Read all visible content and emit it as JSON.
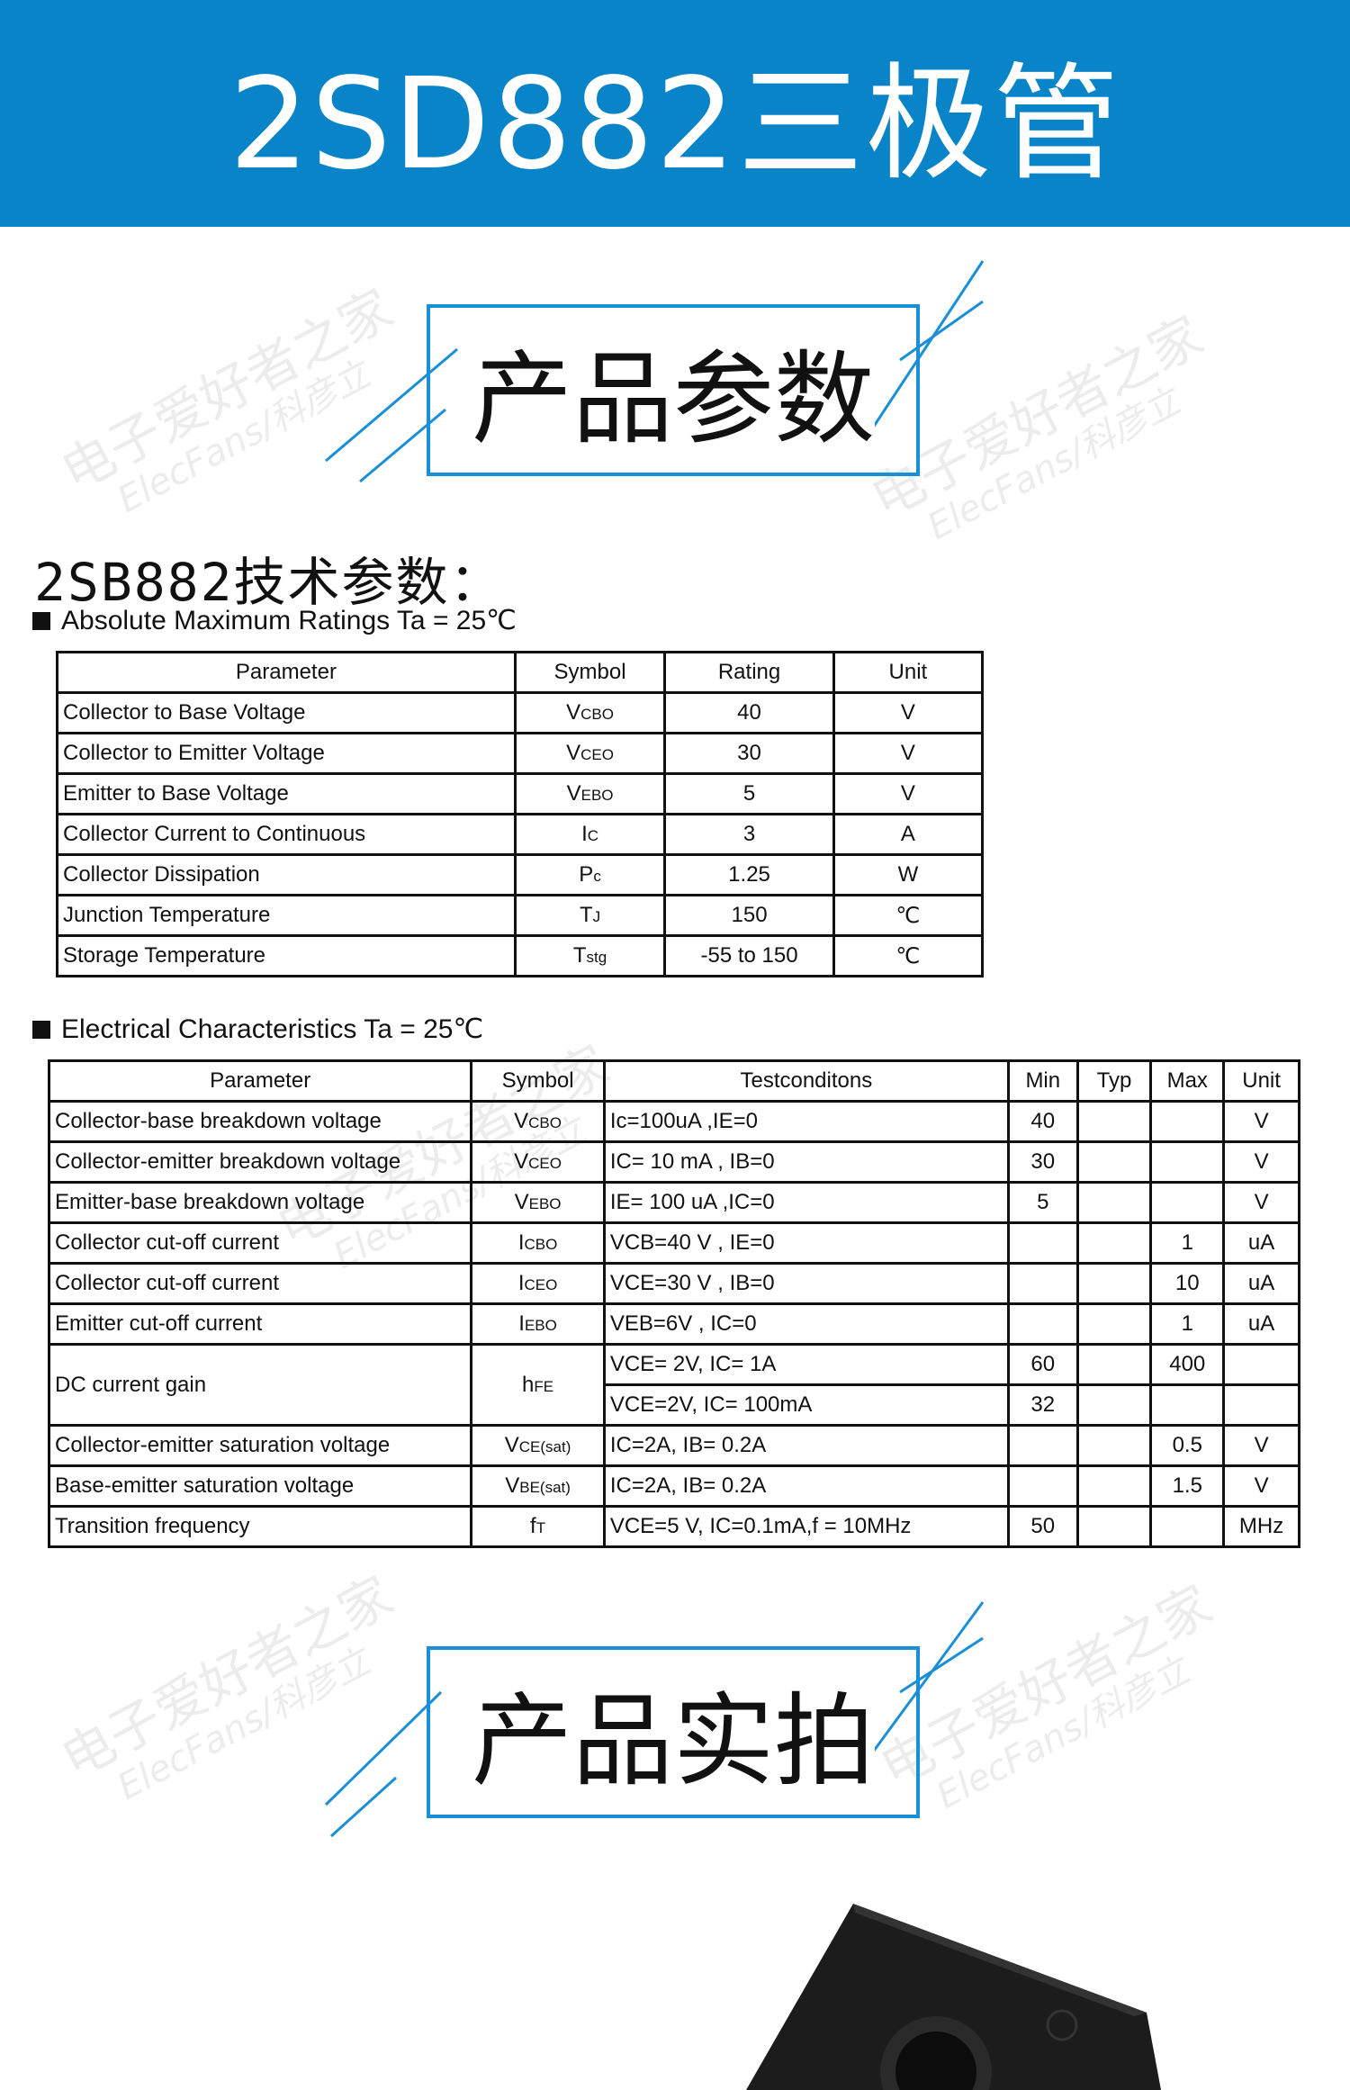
{
  "header": {
    "title": "2SD882三极管",
    "background": "#0a84c8"
  },
  "watermark": {
    "cn": "电子爱好者之家",
    "en": "ElecFans/科彦立"
  },
  "section1": {
    "title": "产品参数"
  },
  "subtitle": "2SB882技术参数：",
  "abs_max": {
    "label": "Absolute Maximum Ratings Ta = 25℃",
    "headers": [
      "Parameter",
      "Symbol",
      "Rating",
      "Unit"
    ],
    "rows": [
      {
        "param": "Collector to Base Voltage",
        "sym": "V",
        "sub": "CBO",
        "rating": "40",
        "unit": "V"
      },
      {
        "param": "Collector to Emitter Voltage",
        "sym": "V",
        "sub": "CEO",
        "rating": "30",
        "unit": "V"
      },
      {
        "param": "Emitter to Base Voltage",
        "sym": "V",
        "sub": "EBO",
        "rating": "5",
        "unit": "V"
      },
      {
        "param": "Collector Current to Continuous",
        "sym": "I",
        "sub": "C",
        "rating": "3",
        "unit": "A"
      },
      {
        "param": "Collector Dissipation",
        "sym": "P",
        "sub": "c",
        "rating": "1.25",
        "unit": "W"
      },
      {
        "param": "Junction Temperature",
        "sym": "T",
        "sub": "J",
        "rating": "150",
        "unit": "℃"
      },
      {
        "param": "Storage Temperature",
        "sym": "T",
        "sub": "stg",
        "rating": "-55 to 150",
        "unit": "℃"
      }
    ]
  },
  "elec": {
    "label": "Electrical Characteristics Ta = 25℃",
    "headers": [
      "Parameter",
      "Symbol",
      "Testconditons",
      "Min",
      "Typ",
      "Max",
      "Unit"
    ],
    "rows": [
      {
        "param": "Collector-base breakdown voltage",
        "sym": "V",
        "sub": "CBO",
        "cond": "Ic=100uA ,IE=0",
        "min": "40",
        "typ": "",
        "max": "",
        "unit": "V"
      },
      {
        "param": "Collector-emitter breakdown voltage",
        "sym": "V",
        "sub": "CEO",
        "cond": "IC= 10 mA , IB=0",
        "min": "30",
        "typ": "",
        "max": "",
        "unit": "V"
      },
      {
        "param": "Emitter-base breakdown voltage",
        "sym": "V",
        "sub": "EBO",
        "cond": "IE= 100 uA ,IC=0",
        "min": "5",
        "typ": "",
        "max": "",
        "unit": "V"
      },
      {
        "param": "Collector cut-off current",
        "sym": "I",
        "sub": "CBO",
        "cond": "VCB=40 V , IE=0",
        "min": "",
        "typ": "",
        "max": "1",
        "unit": "uA"
      },
      {
        "param": "Collector cut-off current",
        "sym": "I",
        "sub": "CEO",
        "cond": "VCE=30 V , IB=0",
        "min": "",
        "typ": "",
        "max": "10",
        "unit": "uA"
      },
      {
        "param": "Emitter cut-off current",
        "sym": "I",
        "sub": "EBO",
        "cond": "VEB=6V , IC=0",
        "min": "",
        "typ": "",
        "max": "1",
        "unit": "uA"
      },
      {
        "param": "DC current gain",
        "sym": "h",
        "sub": "FE",
        "cond": "VCE= 2V, IC= 1A",
        "min": "60",
        "typ": "",
        "max": "400",
        "unit": "",
        "cond2": "VCE=2V, IC= 100mA",
        "min2": "32",
        "typ2": "",
        "max2": "",
        "unit2": ""
      },
      {
        "param": "Collector-emitter saturation voltage",
        "sym": "V",
        "sub": "CE(sat)",
        "cond": "IC=2A, IB= 0.2A",
        "min": "",
        "typ": "",
        "max": "0.5",
        "unit": "V"
      },
      {
        "param": "Base-emitter saturation voltage",
        "sym": "V",
        "sub": "BE(sat)",
        "cond": "IC=2A, IB= 0.2A",
        "min": "",
        "typ": "",
        "max": "1.5",
        "unit": "V"
      },
      {
        "param": "Transition frequency",
        "sym": "f",
        "sub": "T",
        "cond": "VCE=5 V, IC=0.1mA,f = 10MHz",
        "min": "50",
        "typ": "",
        "max": "",
        "unit": "MHz"
      }
    ]
  },
  "section2": {
    "title": "产品实拍"
  }
}
